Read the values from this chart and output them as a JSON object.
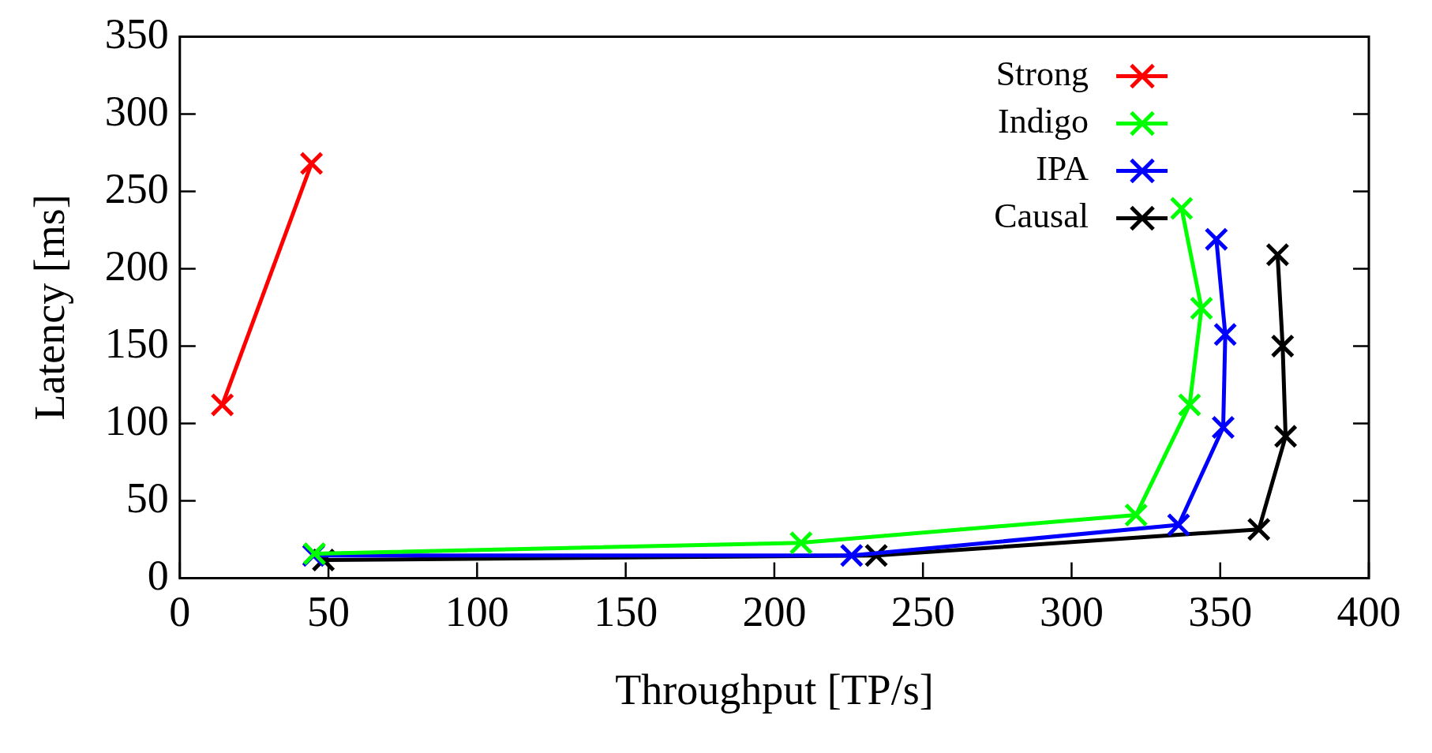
{
  "chart_data": {
    "type": "line",
    "xlabel": "Throughput [TP/s]",
    "ylabel": "Latency [ms]",
    "xlim": [
      0,
      400
    ],
    "ylim": [
      0,
      350
    ],
    "xticks": [
      0,
      50,
      100,
      150,
      200,
      250,
      300,
      350,
      400
    ],
    "yticks": [
      0,
      50,
      100,
      150,
      200,
      250,
      300,
      350
    ],
    "grid": false,
    "legend": "top right",
    "marker": "cross",
    "line_style": "solid",
    "series": [
      {
        "name": "Strong",
        "color": "#ff0000",
        "x": [
          14.3,
          44.3
        ],
        "values": [
          112,
          268
        ]
      },
      {
        "name": "Indigo",
        "color": "#00ff00",
        "x": [
          45.3,
          209,
          321.7,
          339.7,
          343.7,
          337
        ],
        "values": [
          15.8,
          22.8,
          40.8,
          112,
          174.4,
          239
        ]
      },
      {
        "name": "IPA",
        "color": "#0000ff",
        "x": [
          45,
          226,
          336,
          351,
          351.7,
          348.7
        ],
        "values": [
          14.6,
          14.6,
          34.4,
          97.4,
          157.5,
          219
        ]
      },
      {
        "name": "Causal",
        "color": "#000000",
        "x": [
          48.3,
          234.3,
          363,
          372,
          371,
          369.3
        ],
        "values": [
          11.7,
          14.6,
          31.5,
          91.6,
          150,
          209
        ]
      }
    ]
  }
}
